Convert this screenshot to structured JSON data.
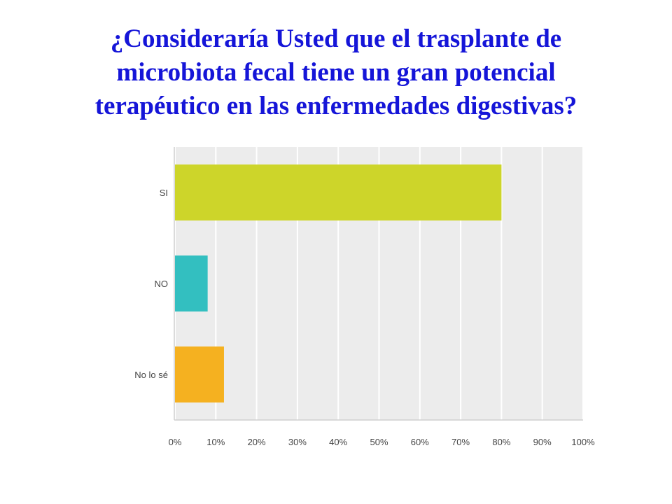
{
  "title": {
    "line1": "¿Consideraría Usted que el trasplante de",
    "line2": "microbiota fecal tiene un gran potencial",
    "line3": "terapéutico en las enfermedades digestivas?"
  },
  "chart_data": {
    "type": "bar",
    "orientation": "horizontal",
    "title": "¿Consideraría Usted que el trasplante de microbiota fecal tiene un gran potencial terapéutico en las enfermedades digestivas?",
    "categories": [
      "SI",
      "NO",
      "No lo sé"
    ],
    "values": [
      80,
      8,
      12
    ],
    "colors": [
      "#cdd52a",
      "#33bfc0",
      "#f5b120"
    ],
    "xlim": [
      0,
      100
    ],
    "ticks": [
      "0%",
      "10%",
      "20%",
      "30%",
      "40%",
      "50%",
      "60%",
      "70%",
      "80%",
      "90%",
      "100%"
    ],
    "grid": true,
    "legend": "none",
    "plot_background": "#ececec",
    "grid_color": "#ffffff"
  }
}
